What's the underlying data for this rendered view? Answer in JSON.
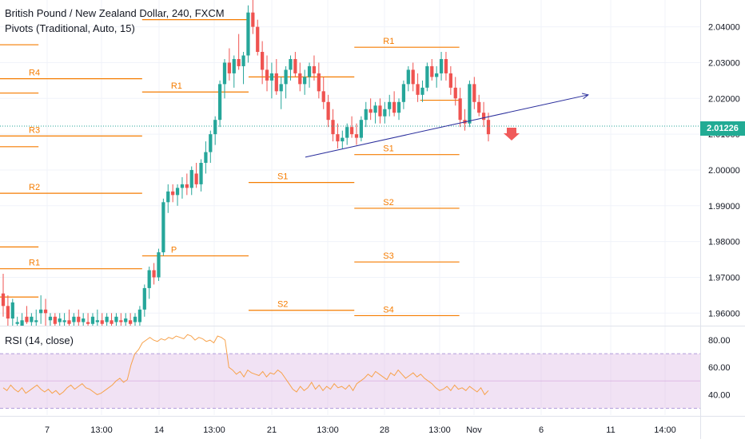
{
  "legend": {
    "title": "British Pound / New Zealand Dollar, 240, FXCM",
    "pivots": "Pivots (Traditional, Auto, 15)",
    "rsi": "RSI (14, close)"
  },
  "current_price": "2.01226",
  "colors": {
    "up": "#26a69a",
    "down": "#ef5350",
    "pivot": "#f57c00",
    "trendline": "#2a2e9c",
    "rsi_line": "#f7a24b",
    "rsi_band": "#e1bee7",
    "price_badge": "#22ab94",
    "sell_arrow": "#f05a5a"
  },
  "icons": {
    "sell_signal": "down-arrow-icon"
  },
  "chart_data": {
    "type": "candlestick",
    "symbol": "GBPNZD",
    "timeframe": "240",
    "price_axis": {
      "labels": [
        "2.04000",
        "2.03000",
        "2.02000",
        "2.01000",
        "2.00000",
        "1.99000",
        "1.98000",
        "1.97000",
        "1.96000"
      ],
      "ylim": [
        1.9565,
        2.0475
      ]
    },
    "time_axis": {
      "labels": [
        "7",
        "13:00",
        "14",
        "13:00",
        "21",
        "13:00",
        "28",
        "13:00",
        "Nov",
        "6",
        "11",
        "14:00"
      ]
    },
    "candles": [
      [
        1.9655,
        1.971,
        1.959,
        1.962
      ],
      [
        1.962,
        1.965,
        1.9565,
        1.9585
      ],
      [
        1.9585,
        1.964,
        1.9565,
        1.963
      ],
      [
        1.957,
        1.959,
        1.9565,
        1.9575
      ],
      [
        1.9565,
        1.96,
        1.9565,
        1.958
      ],
      [
        1.959,
        1.962,
        1.957,
        1.9575
      ],
      [
        1.9575,
        1.96,
        1.9565,
        1.959
      ],
      [
        1.9575,
        1.961,
        1.9565,
        1.958
      ],
      [
        1.96,
        1.965,
        1.957,
        1.961
      ],
      [
        1.961,
        1.964,
        1.9565,
        1.96
      ],
      [
        1.958,
        1.96,
        1.9565,
        1.959
      ],
      [
        1.959,
        1.96,
        1.9565,
        1.957
      ],
      [
        1.9575,
        1.96,
        1.9565,
        1.9585
      ],
      [
        1.9575,
        1.96,
        1.9565,
        1.958
      ],
      [
        1.958,
        1.961,
        1.9565,
        1.957
      ],
      [
        1.9575,
        1.96,
        1.9565,
        1.959
      ],
      [
        1.959,
        1.961,
        1.9565,
        1.9575
      ],
      [
        1.9575,
        1.96,
        1.9565,
        1.9585
      ],
      [
        1.9575,
        1.96,
        1.9565,
        1.957
      ],
      [
        1.957,
        1.96,
        1.9565,
        1.959
      ],
      [
        1.9575,
        1.961,
        1.9565,
        1.958
      ],
      [
        1.958,
        1.96,
        1.9565,
        1.957
      ],
      [
        1.9575,
        1.96,
        1.9565,
        1.959
      ],
      [
        1.958,
        1.96,
        1.9565,
        1.957
      ],
      [
        1.9575,
        1.96,
        1.9565,
        1.959
      ],
      [
        1.958,
        1.96,
        1.9565,
        1.9575
      ],
      [
        1.9575,
        1.96,
        1.9565,
        1.9585
      ],
      [
        1.958,
        1.96,
        1.9565,
        1.957
      ],
      [
        1.9575,
        1.96,
        1.9565,
        1.959
      ],
      [
        1.9575,
        1.962,
        1.9565,
        1.961
      ],
      [
        1.961,
        1.968,
        1.959,
        1.967
      ],
      [
        1.967,
        1.973,
        1.964,
        1.972
      ],
      [
        1.972,
        1.974,
        1.968,
        1.97
      ],
      [
        1.97,
        1.978,
        1.969,
        1.977
      ],
      [
        1.977,
        1.992,
        1.976,
        1.991
      ],
      [
        1.991,
        1.996,
        1.988,
        1.994
      ],
      [
        1.994,
        1.996,
        1.991,
        1.993
      ],
      [
        1.993,
        1.996,
        1.99,
        1.995
      ],
      [
        1.995,
        1.998,
        1.992,
        1.996
      ],
      [
        1.996,
        1.999,
        1.993,
        1.995
      ],
      [
        1.995,
        2.001,
        1.993,
        2.0
      ],
      [
        1.999,
        2.002,
        1.995,
        1.996
      ],
      [
        1.996,
        2.003,
        1.994,
        2.002
      ],
      [
        2.002,
        2.008,
        1.999,
        2.005
      ],
      [
        2.005,
        2.011,
        2.002,
        2.01
      ],
      [
        2.01,
        2.015,
        2.007,
        2.014
      ],
      [
        2.014,
        2.025,
        2.012,
        2.024
      ],
      [
        2.024,
        2.031,
        2.02,
        2.03
      ],
      [
        2.03,
        2.034,
        2.025,
        2.027
      ],
      [
        2.027,
        2.032,
        2.023,
        2.031
      ],
      [
        2.031,
        2.038,
        2.028,
        2.029
      ],
      [
        2.029,
        2.033,
        2.024,
        2.032
      ],
      [
        2.032,
        2.046,
        2.03,
        2.044
      ],
      [
        2.044,
        2.048,
        2.038,
        2.04
      ],
      [
        2.04,
        2.042,
        2.032,
        2.033
      ],
      [
        2.033,
        2.036,
        2.024,
        2.028
      ],
      [
        2.028,
        2.032,
        2.022,
        2.025
      ],
      [
        2.025,
        2.03,
        2.02,
        2.027
      ],
      [
        2.027,
        2.031,
        2.021,
        2.022
      ],
      [
        2.022,
        2.026,
        2.017,
        2.024
      ],
      [
        2.024,
        2.029,
        2.02,
        2.028
      ],
      [
        2.028,
        2.032,
        2.025,
        2.031
      ],
      [
        2.031,
        2.033,
        2.026,
        2.027
      ],
      [
        2.027,
        2.03,
        2.022,
        2.024
      ],
      [
        2.024,
        2.028,
        2.021,
        2.026
      ],
      [
        2.026,
        2.03,
        2.023,
        2.029
      ],
      [
        2.029,
        2.032,
        2.025,
        2.027
      ],
      [
        2.027,
        2.03,
        2.02,
        2.022
      ],
      [
        2.022,
        2.026,
        2.017,
        2.019
      ],
      [
        2.019,
        2.021,
        2.012,
        2.014
      ],
      [
        2.014,
        2.017,
        2.008,
        2.01
      ],
      [
        2.01,
        2.013,
        2.006,
        2.008
      ],
      [
        2.008,
        2.011,
        2.006,
        2.009
      ],
      [
        2.009,
        2.013,
        2.007,
        2.012
      ],
      [
        2.012,
        2.015,
        2.009,
        2.01
      ],
      [
        2.01,
        2.013,
        2.007,
        2.009
      ],
      [
        2.009,
        2.015,
        2.008,
        2.014
      ],
      [
        2.014,
        2.019,
        2.012,
        2.017
      ],
      [
        2.017,
        2.02,
        2.014,
        2.016
      ],
      [
        2.016,
        2.019,
        2.013,
        2.018
      ],
      [
        2.018,
        2.02,
        2.013,
        2.015
      ],
      [
        2.015,
        2.019,
        2.013,
        2.017
      ],
      [
        2.017,
        2.021,
        2.015,
        2.019
      ],
      [
        2.019,
        2.022,
        2.015,
        2.016
      ],
      [
        2.016,
        2.02,
        2.014,
        2.019
      ],
      [
        2.019,
        2.025,
        2.017,
        2.024
      ],
      [
        2.024,
        2.029,
        2.022,
        2.028
      ],
      [
        2.028,
        2.03,
        2.022,
        2.024
      ],
      [
        2.024,
        2.027,
        2.019,
        2.021
      ],
      [
        2.021,
        2.025,
        2.019,
        2.023
      ],
      [
        2.023,
        2.03,
        2.022,
        2.029
      ],
      [
        2.029,
        2.031,
        2.025,
        2.026
      ],
      [
        2.026,
        2.029,
        2.023,
        2.027
      ],
      [
        2.027,
        2.033,
        2.025,
        2.031
      ],
      [
        2.031,
        2.033,
        2.025,
        2.027
      ],
      [
        2.027,
        2.029,
        2.021,
        2.023
      ],
      [
        2.023,
        2.026,
        2.018,
        2.02
      ],
      [
        2.02,
        2.023,
        2.012,
        2.014
      ],
      [
        2.014,
        2.017,
        2.011,
        2.013
      ],
      [
        2.013,
        2.025,
        2.012,
        2.024
      ],
      [
        2.024,
        2.026,
        2.017,
        2.019
      ],
      [
        2.019,
        2.021,
        2.015,
        2.016
      ],
      [
        2.016,
        2.019,
        2.012,
        2.014
      ],
      [
        2.014,
        2.016,
        2.008,
        2.01
      ]
    ],
    "pivots": [
      {
        "label": "R2",
        "price": 2.051,
        "from": 0.0,
        "to": 0.203
      },
      {
        "label": "R4",
        "price": 2.0255,
        "from": 0.0,
        "to": 0.203
      },
      {
        "label": "R3",
        "price": 2.0095,
        "from": 0.0,
        "to": 0.203
      },
      {
        "label": "R2",
        "price": 1.9935,
        "from": 0.0,
        "to": 0.203
      },
      {
        "label": "R1",
        "price": 1.9724,
        "from": 0.0,
        "to": 0.203
      },
      {
        "label": "",
        "price": 2.035,
        "from": 0.0,
        "to": 0.055
      },
      {
        "label": "",
        "price": 2.0215,
        "from": 0.0,
        "to": 0.055
      },
      {
        "label": "",
        "price": 2.0065,
        "from": 0.0,
        "to": 0.055
      },
      {
        "label": "",
        "price": 1.9785,
        "from": 0.0,
        "to": 0.055
      },
      {
        "label": "",
        "price": 1.9645,
        "from": 0.0,
        "to": 0.055
      },
      {
        "label": "R2",
        "price": 2.0485,
        "from": 0.203,
        "to": 0.355
      },
      {
        "label": "",
        "price": 2.042,
        "from": 0.203,
        "to": 0.355
      },
      {
        "label": "R1",
        "price": 2.0218,
        "from": 0.203,
        "to": 0.355
      },
      {
        "label": "P",
        "price": 1.976,
        "from": 0.203,
        "to": 0.355
      },
      {
        "label": "",
        "price": 2.026,
        "from": 0.355,
        "to": 0.506
      },
      {
        "label": "S1",
        "price": 1.9965,
        "from": 0.355,
        "to": 0.506
      },
      {
        "label": "S2",
        "price": 1.9608,
        "from": 0.355,
        "to": 0.506
      },
      {
        "label": "R1",
        "price": 2.0343,
        "from": 0.506,
        "to": 0.656
      },
      {
        "label": "S1",
        "price": 2.0043,
        "from": 0.506,
        "to": 0.656
      },
      {
        "label": "S2",
        "price": 1.9893,
        "from": 0.506,
        "to": 0.656
      },
      {
        "label": "S3",
        "price": 1.9743,
        "from": 0.506,
        "to": 0.656
      },
      {
        "label": "S4",
        "price": 1.9593,
        "from": 0.506,
        "to": 0.656
      },
      {
        "label": "",
        "price": 2.0195,
        "from": 0.6,
        "to": 0.656
      }
    ],
    "trendline": {
      "from": [
        0.436,
        2.0036
      ],
      "to": [
        0.84,
        2.021
      ]
    },
    "rsi": {
      "ylim": [
        25,
        90
      ],
      "labels": [
        "80.00",
        "60.00",
        "40.00"
      ],
      "band": [
        70,
        30
      ],
      "midline": 50,
      "values": [
        45,
        43,
        47,
        44,
        42,
        45,
        41,
        43,
        45,
        47,
        44,
        42,
        44,
        41,
        43,
        40,
        42,
        45,
        47,
        44,
        46,
        48,
        45,
        44,
        42,
        40,
        41,
        43,
        45,
        47,
        50,
        52,
        49,
        51,
        62,
        70,
        73,
        78,
        80,
        82,
        80,
        79,
        81,
        80,
        82,
        81,
        83,
        82,
        81,
        84,
        83,
        80,
        82,
        81,
        79,
        80,
        78,
        83,
        82,
        80,
        60,
        58,
        55,
        57,
        53,
        58,
        56,
        55,
        54,
        57,
        53,
        56,
        55,
        58,
        56,
        52,
        48,
        44,
        42,
        46,
        43,
        45,
        49,
        44,
        47,
        43,
        46,
        44,
        48,
        45,
        46,
        44,
        47,
        43,
        48,
        50,
        52,
        55,
        53,
        57,
        55,
        53,
        51,
        56,
        54,
        58,
        55,
        52,
        54,
        56,
        53,
        55,
        52,
        50,
        48,
        45,
        43,
        44,
        46,
        43,
        47,
        44,
        45,
        43,
        46,
        44,
        42,
        45,
        40,
        43
      ]
    }
  }
}
